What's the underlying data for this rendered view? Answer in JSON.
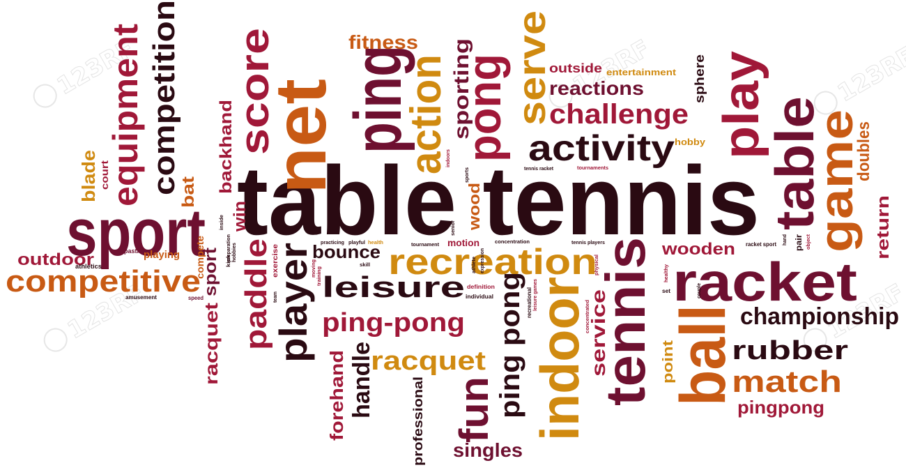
{
  "colors": {
    "dark": "#2a0a12",
    "maroon": "#6e1030",
    "crimson": "#a01838",
    "orange": "#c85a14",
    "gold": "#d08a10",
    "watermark": "#e4e4e4"
  },
  "watermark_text": "123RF",
  "words": [
    {
      "id": "table-tennis",
      "text": "table tennis",
      "color": "dark"
    },
    {
      "id": "sport",
      "text": "sport",
      "color": "maroon"
    },
    {
      "id": "competitive",
      "text": "competitive",
      "color": "orange"
    },
    {
      "id": "racket",
      "text": "racket",
      "color": "maroon"
    },
    {
      "id": "ball",
      "text": "ball",
      "color": "orange"
    },
    {
      "id": "tennis-vertical",
      "text": "tennis",
      "color": "maroon"
    },
    {
      "id": "table-vertical",
      "text": "table",
      "color": "maroon"
    },
    {
      "id": "game",
      "text": "game",
      "color": "orange"
    },
    {
      "id": "indoor",
      "text": "indoor",
      "color": "gold"
    },
    {
      "id": "net",
      "text": "net",
      "color": "orange"
    },
    {
      "id": "ping",
      "text": "ping",
      "color": "maroon"
    },
    {
      "id": "pong",
      "text": "pong",
      "color": "crimson"
    },
    {
      "id": "score",
      "text": "score",
      "color": "crimson"
    },
    {
      "id": "action",
      "text": "action",
      "color": "gold"
    },
    {
      "id": "serve",
      "text": "serve",
      "color": "gold"
    },
    {
      "id": "play",
      "text": "play",
      "color": "crimson"
    },
    {
      "id": "activity",
      "text": "activity",
      "color": "dark"
    },
    {
      "id": "challenge",
      "text": "challenge",
      "color": "crimson"
    },
    {
      "id": "reactions",
      "text": "reactions",
      "color": "maroon"
    },
    {
      "id": "outside",
      "text": "outside",
      "color": "crimson"
    },
    {
      "id": "entertainment",
      "text": "entertainment",
      "color": "gold"
    },
    {
      "id": "sphere",
      "text": "sphere",
      "color": "dark"
    },
    {
      "id": "hobby",
      "text": "hobby",
      "color": "gold"
    },
    {
      "id": "fitness",
      "text": "fitness",
      "color": "orange"
    },
    {
      "id": "sporting",
      "text": "sporting",
      "color": "maroon"
    },
    {
      "id": "equipment",
      "text": "equipment",
      "color": "crimson"
    },
    {
      "id": "competition",
      "text": "competition",
      "color": "dark"
    },
    {
      "id": "backhand",
      "text": "backhand",
      "color": "crimson"
    },
    {
      "id": "blade",
      "text": "blade",
      "color": "gold"
    },
    {
      "id": "court",
      "text": "court",
      "color": "crimson"
    },
    {
      "id": "bat",
      "text": "bat",
      "color": "orange"
    },
    {
      "id": "win",
      "text": "win",
      "color": "crimson"
    },
    {
      "id": "outdoor",
      "text": "outdoor",
      "color": "crimson"
    },
    {
      "id": "athletics",
      "text": "athletics",
      "color": "dark"
    },
    {
      "id": "pastime",
      "text": "pastime",
      "color": "maroon"
    },
    {
      "id": "playing",
      "text": "playing",
      "color": "orange"
    },
    {
      "id": "amusement",
      "text": "amusement",
      "color": "dark"
    },
    {
      "id": "speed",
      "text": "speed",
      "color": "maroon"
    },
    {
      "id": "sport-vertical",
      "text": "sport",
      "color": "maroon"
    },
    {
      "id": "compete",
      "text": "compete",
      "color": "orange"
    },
    {
      "id": "racquet-vertical",
      "text": "racquet",
      "color": "crimson"
    },
    {
      "id": "paddle",
      "text": "paddle",
      "color": "crimson"
    },
    {
      "id": "player",
      "text": "player",
      "color": "dark"
    },
    {
      "id": "bounce",
      "text": "bounce",
      "color": "dark"
    },
    {
      "id": "leisure",
      "text": "leisure",
      "color": "dark"
    },
    {
      "id": "recreation",
      "text": "recreation",
      "color": "gold"
    },
    {
      "id": "ping-pong-hyphen",
      "text": "ping-pong",
      "color": "crimson"
    },
    {
      "id": "racquet",
      "text": "racquet",
      "color": "gold"
    },
    {
      "id": "ping-pong-vertical",
      "text": "ping pong",
      "color": "dark"
    },
    {
      "id": "handle",
      "text": "handle",
      "color": "dark"
    },
    {
      "id": "forehand",
      "text": "forehand",
      "color": "crimson"
    },
    {
      "id": "fun",
      "text": "fun",
      "color": "maroon"
    },
    {
      "id": "singles",
      "text": "singles",
      "color": "maroon"
    },
    {
      "id": "professional",
      "text": "professional",
      "color": "dark"
    },
    {
      "id": "wood",
      "text": "wood",
      "color": "orange"
    },
    {
      "id": "motion",
      "text": "motion",
      "color": "crimson"
    },
    {
      "id": "service",
      "text": "service",
      "color": "crimson"
    },
    {
      "id": "point",
      "text": "point",
      "color": "gold"
    },
    {
      "id": "wooden",
      "text": "wooden",
      "color": "crimson"
    },
    {
      "id": "championship",
      "text": "championship",
      "color": "dark"
    },
    {
      "id": "rubber",
      "text": "rubber",
      "color": "dark"
    },
    {
      "id": "match",
      "text": "match",
      "color": "orange"
    },
    {
      "id": "pingpong",
      "text": "pingpong",
      "color": "crimson"
    },
    {
      "id": "doubles",
      "text": "doubles",
      "color": "orange"
    },
    {
      "id": "return",
      "text": "return",
      "color": "crimson"
    },
    {
      "id": "racket-sport",
      "text": "racket sport",
      "color": "dark"
    },
    {
      "id": "pair",
      "text": "pair",
      "color": "dark"
    },
    {
      "id": "tennis-racket",
      "text": "tennis racket",
      "color": "dark"
    },
    {
      "id": "tournaments",
      "text": "tournaments",
      "color": "crimson"
    },
    {
      "id": "tennis-players",
      "text": "tennis players",
      "color": "dark"
    },
    {
      "id": "tournament",
      "text": "tournament",
      "color": "dark"
    },
    {
      "id": "concentration",
      "text": "concentration",
      "color": "dark"
    },
    {
      "id": "practicing",
      "text": "practicing",
      "color": "dark"
    },
    {
      "id": "playful",
      "text": "playful",
      "color": "dark"
    },
    {
      "id": "health",
      "text": "health",
      "color": "gold"
    },
    {
      "id": "skill",
      "text": "skill",
      "color": "dark"
    },
    {
      "id": "definition",
      "text": "definition",
      "color": "crimson"
    },
    {
      "id": "individual",
      "text": "individual",
      "color": "dark"
    },
    {
      "id": "exercise",
      "text": "exercise",
      "color": "crimson"
    },
    {
      "id": "inside",
      "text": "inside",
      "color": "dark"
    },
    {
      "id": "kick",
      "text": "kick",
      "color": "dark"
    },
    {
      "id": "preparation",
      "text": "preparation",
      "color": "dark"
    },
    {
      "id": "hobbies",
      "text": "hobbies",
      "color": "dark"
    },
    {
      "id": "team",
      "text": "team",
      "color": "dark"
    },
    {
      "id": "training",
      "text": "training",
      "color": "crimson"
    },
    {
      "id": "moving",
      "text": "moving",
      "color": "crimson"
    },
    {
      "id": "athlete",
      "text": "athlete",
      "color": "dark"
    },
    {
      "id": "senior",
      "text": "senior",
      "color": "dark"
    },
    {
      "id": "expression",
      "text": "expression",
      "color": "dark"
    },
    {
      "id": "sports",
      "text": "sports",
      "color": "dark"
    },
    {
      "id": "indoors",
      "text": "indoors",
      "color": "crimson"
    },
    {
      "id": "recreational",
      "text": "recreational",
      "color": "dark"
    },
    {
      "id": "leisure-games",
      "text": "leisure games",
      "color": "crimson"
    },
    {
      "id": "physical",
      "text": "physical",
      "color": "crimson"
    },
    {
      "id": "concentrated",
      "text": "concentrated",
      "color": "crimson"
    },
    {
      "id": "healthy",
      "text": "healthy",
      "color": "crimson"
    },
    {
      "id": "set",
      "text": "set",
      "color": "dark"
    },
    {
      "id": "couple",
      "text": "couple",
      "color": "dark"
    },
    {
      "id": "hand",
      "text": "hand",
      "color": "dark"
    },
    {
      "id": "object",
      "text": "object",
      "color": "crimson"
    }
  ]
}
